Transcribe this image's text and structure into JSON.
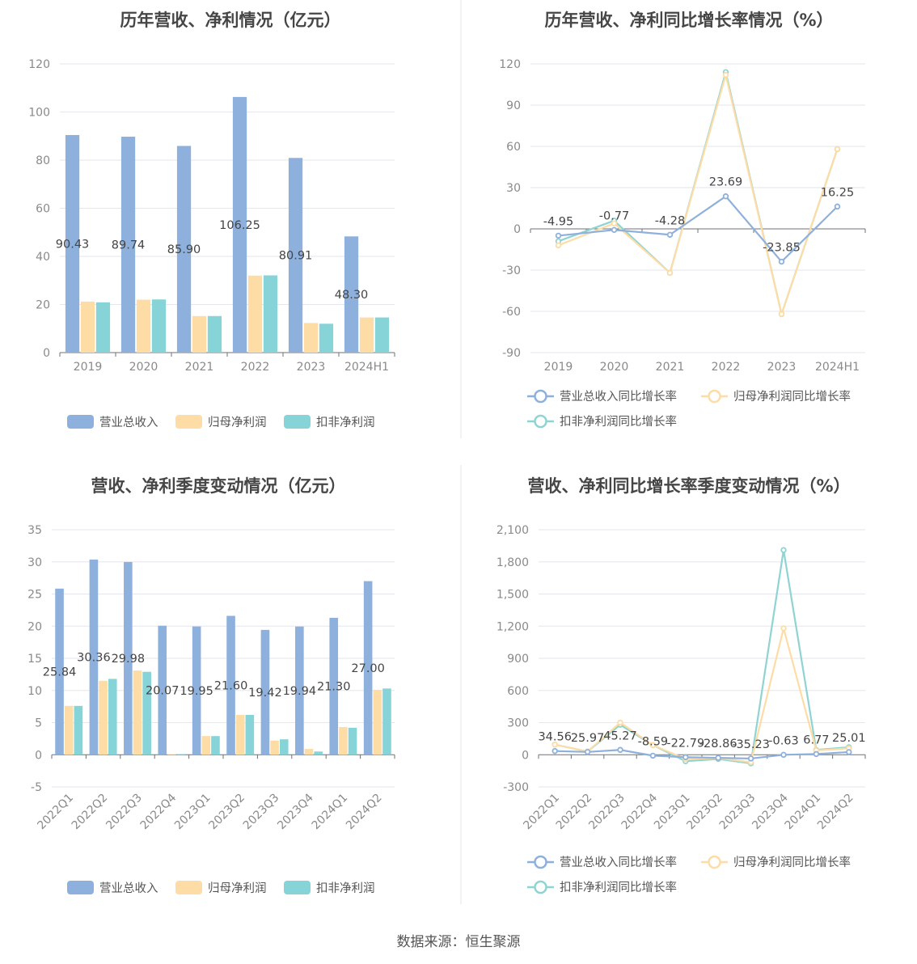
{
  "source": "数据来源：恒生聚源",
  "colors": {
    "revenue": "#8eb0dc",
    "net_profit": "#fddca5",
    "deducted": "#86d4d8",
    "deducted_line": "#8fd4d2"
  },
  "legend_bar": [
    "营业总收入",
    "归母净利润",
    "扣非净利润"
  ],
  "legend_line": [
    "营业总收入同比增长率",
    "归母净利润同比增长率",
    "扣非净利润同比增长率"
  ],
  "chart_data": [
    {
      "id": "annual-amount",
      "type": "bar",
      "title": "历年营收、净利情况（亿元）",
      "categories": [
        "2019",
        "2020",
        "2021",
        "2022",
        "2023",
        "2024H1"
      ],
      "ylim": [
        0,
        120
      ],
      "yticks": [
        "0",
        "20",
        "40",
        "60",
        "80",
        "100",
        "120"
      ],
      "series": [
        {
          "name": "营业总收入",
          "values": [
            90.43,
            89.74,
            85.9,
            106.25,
            80.91,
            48.3
          ],
          "labels": [
            "90.43",
            "89.74",
            "85.90",
            "106.25",
            "80.91",
            "48.30"
          ]
        },
        {
          "name": "归母净利润",
          "values": [
            21.2,
            22.0,
            15.2,
            32.0,
            12.3,
            14.6
          ]
        },
        {
          "name": "扣非净利润",
          "values": [
            20.9,
            22.1,
            15.2,
            32.1,
            12.0,
            14.6
          ]
        }
      ]
    },
    {
      "id": "annual-growth",
      "type": "line",
      "title": "历年营收、净利同比增长率情况（%）",
      "categories": [
        "2019",
        "2020",
        "2021",
        "2022",
        "2023",
        "2024H1"
      ],
      "ylim": [
        -90,
        120
      ],
      "yticks": [
        "-90",
        "-60",
        "-30",
        "0",
        "30",
        "60",
        "90",
        "120"
      ],
      "series": [
        {
          "name": "营业总收入同比增长率",
          "values": [
            -4.95,
            -0.77,
            -4.28,
            23.69,
            -23.85,
            16.25
          ],
          "labels": [
            "-4.95",
            "-0.77",
            "-4.28",
            "23.69",
            "-23.85",
            "16.25"
          ]
        },
        {
          "name": "归母净利润同比增长率",
          "values": [
            -12,
            4,
            -32,
            112,
            -62,
            58
          ]
        },
        {
          "name": "扣非净利润同比增长率",
          "values": [
            -9,
            6,
            -32,
            114,
            -62,
            58
          ]
        }
      ]
    },
    {
      "id": "quarter-amount",
      "type": "bar",
      "title": "营收、净利季度变动情况（亿元）",
      "categories": [
        "2022Q1",
        "2022Q2",
        "2022Q3",
        "2022Q4",
        "2023Q1",
        "2023Q2",
        "2023Q3",
        "2023Q4",
        "2024Q1",
        "2024Q2"
      ],
      "ylim": [
        -5,
        35
      ],
      "yticks": [
        "-5",
        "0",
        "5",
        "10",
        "15",
        "20",
        "25",
        "30",
        "35"
      ],
      "series": [
        {
          "name": "营业总收入",
          "values": [
            25.84,
            30.36,
            29.98,
            20.07,
            19.95,
            21.6,
            19.42,
            19.94,
            21.3,
            27.0
          ],
          "labels": [
            "25.84",
            "30.36",
            "29.98",
            "20.07",
            "19.95",
            "21.60",
            "19.42",
            "19.94",
            "21.30",
            "27.00"
          ]
        },
        {
          "name": "归母净利润",
          "values": [
            7.6,
            11.5,
            13.1,
            0.1,
            2.9,
            6.2,
            2.2,
            0.9,
            4.3,
            10.1
          ]
        },
        {
          "name": "扣非净利润",
          "values": [
            7.6,
            11.8,
            12.9,
            0.1,
            2.9,
            6.2,
            2.4,
            0.5,
            4.2,
            10.3
          ]
        }
      ]
    },
    {
      "id": "quarter-growth",
      "type": "line",
      "title": "营收、净利同比增长率季度变动情况（%）",
      "categories": [
        "2022Q1",
        "2022Q2",
        "2022Q3",
        "2022Q4",
        "2023Q1",
        "2023Q2",
        "2023Q3",
        "2023Q4",
        "2024Q1",
        "2024Q2"
      ],
      "ylim": [
        -300,
        2100
      ],
      "yticks": [
        "-300",
        "0",
        "300",
        "600",
        "900",
        "1,200",
        "1,500",
        "1,800",
        "2,100"
      ],
      "series": [
        {
          "name": "营业总收入同比增长率",
          "values": [
            34.56,
            25.97,
            45.27,
            -8.59,
            -22.79,
            -28.86,
            -35.23,
            -0.63,
            6.77,
            25.01
          ],
          "labels": [
            "34.56",
            "25.97",
            "45.27",
            "-8.59",
            "-22.79",
            "-28.86",
            "-35.23",
            "-0.63",
            "6.77",
            "25.01"
          ]
        },
        {
          "name": "归母净利润同比增长率",
          "values": [
            95,
            30,
            300,
            90,
            -40,
            -30,
            -70,
            1180,
            40,
            60
          ]
        },
        {
          "name": "扣非净利润同比增长率",
          "values": [
            95,
            30,
            280,
            90,
            -60,
            -40,
            -80,
            1910,
            45,
            70
          ]
        }
      ]
    }
  ]
}
